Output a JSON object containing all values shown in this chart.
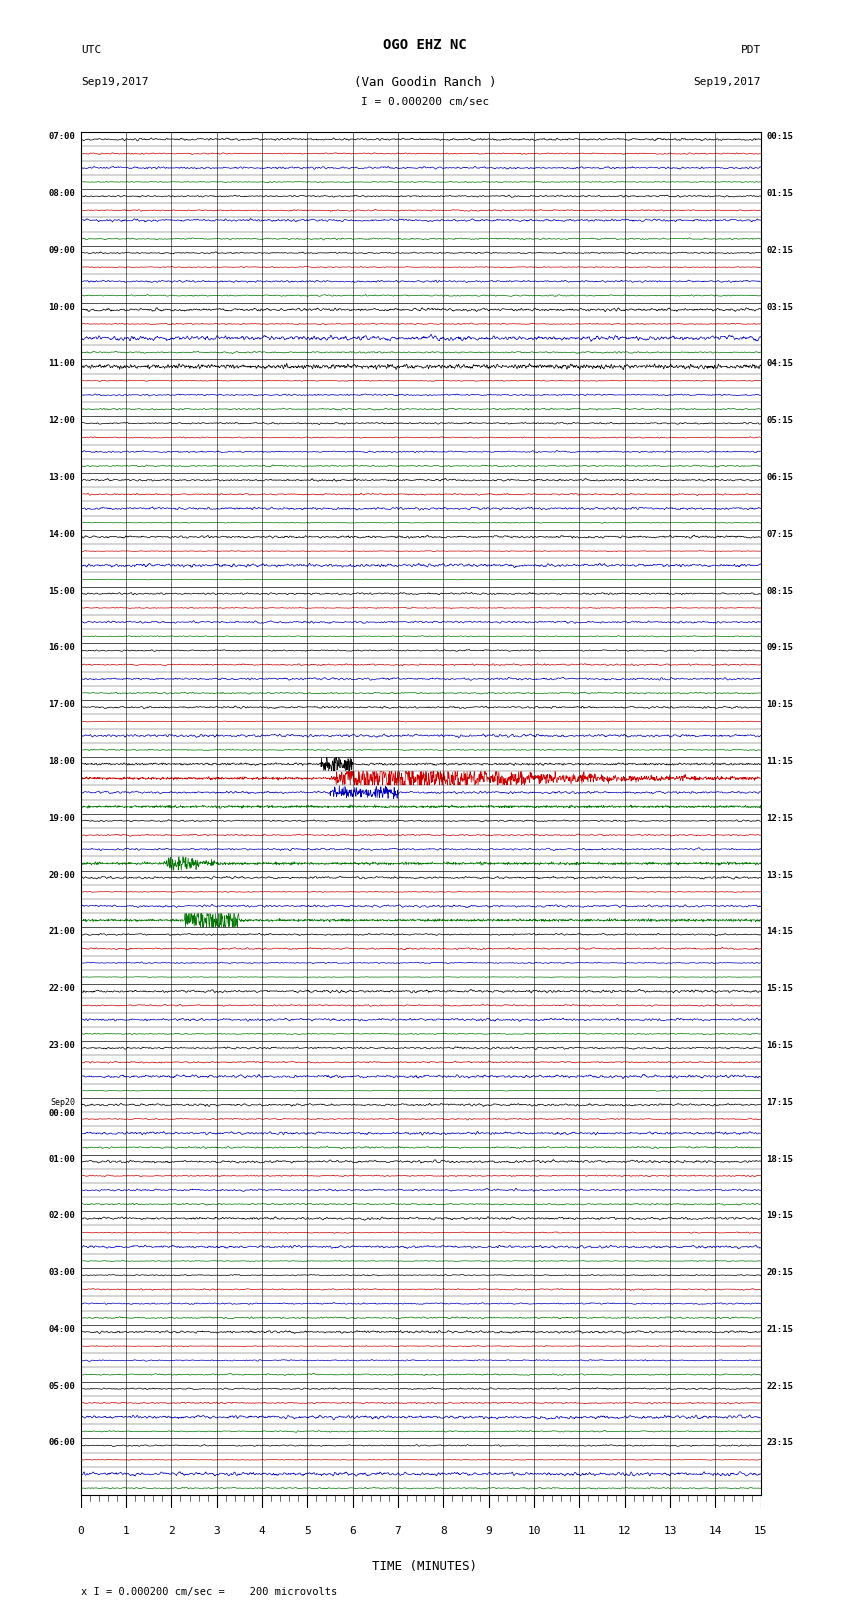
{
  "title_line1": "OGO EHZ NC",
  "title_line2": "(Van Goodin Ranch )",
  "scale_label": "I = 0.000200 cm/sec",
  "left_label_line1": "UTC",
  "left_label_line2": "Sep19,2017",
  "right_label_line1": "PDT",
  "right_label_line2": "Sep19,2017",
  "bottom_label": "TIME (MINUTES)",
  "footer_text": "x I = 0.000200 cm/sec =    200 microvolts",
  "x_max": 15,
  "bg_color": "#ffffff",
  "grid_color": "#000000",
  "trace_color_black": "#000000",
  "trace_color_red": "#cc0000",
  "trace_color_blue": "#0000bb",
  "trace_color_green": "#007700",
  "figure_width": 8.5,
  "figure_height": 16.13,
  "utc_labels_every4": [
    "07:00",
    "08:00",
    "09:00",
    "10:00",
    "11:00",
    "12:00",
    "13:00",
    "14:00",
    "15:00",
    "16:00",
    "17:00",
    "18:00",
    "19:00",
    "20:00",
    "21:00",
    "22:00",
    "23:00",
    "Sep20\n00:00",
    "01:00",
    "02:00",
    "03:00",
    "04:00",
    "05:00",
    "06:00"
  ],
  "pdt_labels_every4": [
    "00:15",
    "01:15",
    "02:15",
    "03:15",
    "04:15",
    "05:15",
    "06:15",
    "07:15",
    "08:15",
    "09:15",
    "10:15",
    "11:15",
    "12:15",
    "13:15",
    "14:15",
    "15:15",
    "16:15",
    "17:15",
    "18:15",
    "19:15",
    "20:15",
    "21:15",
    "22:15",
    "23:15"
  ]
}
